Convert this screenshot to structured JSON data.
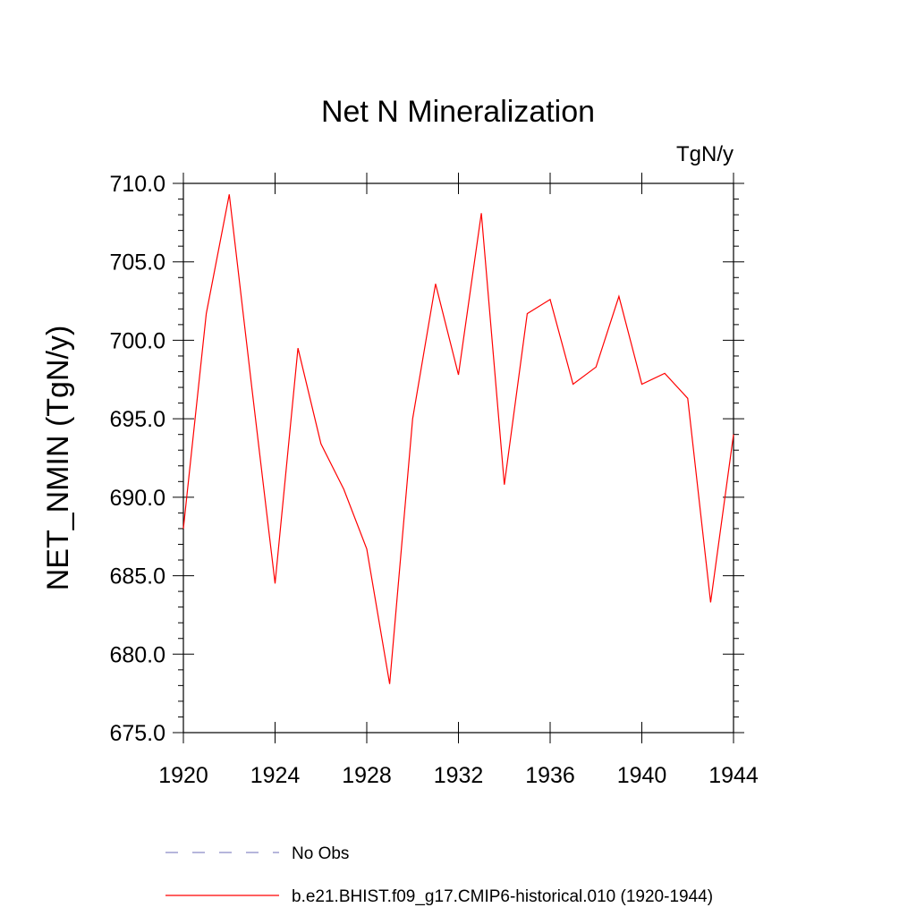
{
  "chart_data": {
    "type": "line",
    "title": "Net N Mineralization",
    "units_label": "TgN/y",
    "ylabel": "NET_NMIN  (TgN/y)",
    "xlabel": "",
    "xlim": [
      1920,
      1944
    ],
    "ylim": [
      675.0,
      710.0
    ],
    "x_ticks": [
      1920,
      1924,
      1928,
      1932,
      1936,
      1940,
      1944
    ],
    "x_tick_labels": [
      "1920",
      "1924",
      "1928",
      "1932",
      "1936",
      "1940",
      "1944"
    ],
    "y_ticks": [
      675,
      680,
      685,
      690,
      695,
      700,
      705,
      710
    ],
    "y_tick_labels": [
      "675.0",
      "680.0",
      "685.0",
      "690.0",
      "695.0",
      "700.0",
      "705.0",
      "710.0"
    ],
    "grid": false,
    "legend_position": "bottom",
    "legend": [
      {
        "label": "No Obs",
        "style": "dashed",
        "color": "#8b8bc8"
      },
      {
        "label": "b.e21.BHIST.f09_g17.CMIP6-historical.010 (1920-1944)",
        "style": "solid",
        "color": "#ff0000"
      }
    ],
    "series": [
      {
        "name": "b.e21.BHIST.f09_g17.CMIP6-historical.010 (1920-1944)",
        "color": "#ff0000",
        "x": [
          1920,
          1921,
          1922,
          1923,
          1924,
          1925,
          1926,
          1927,
          1928,
          1929,
          1930,
          1931,
          1932,
          1933,
          1934,
          1935,
          1936,
          1937,
          1938,
          1939,
          1940,
          1941,
          1942,
          1943,
          1944
        ],
        "y": [
          688.0,
          701.7,
          709.3,
          696.8,
          684.5,
          699.5,
          693.4,
          690.5,
          686.7,
          678.1,
          695.0,
          703.6,
          697.8,
          708.1,
          690.8,
          701.7,
          702.6,
          697.2,
          698.3,
          702.8,
          697.2,
          697.9,
          696.3,
          683.3,
          694.0
        ]
      }
    ]
  }
}
